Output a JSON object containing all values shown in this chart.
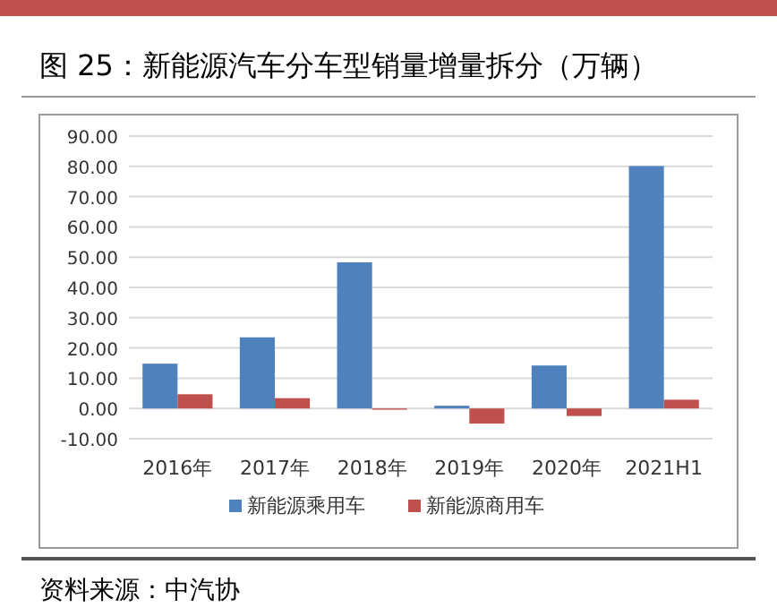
{
  "chart_data": {
    "type": "bar",
    "title": "图 25：新能源汽车分车型销量增量拆分（万辆）",
    "categories": [
      "2016年",
      "2017年",
      "2018年",
      "2019年",
      "2020年",
      "2021H1"
    ],
    "series": [
      {
        "name": "新能源乘用车",
        "color": "#4f81bd",
        "values": [
          14.8,
          23.5,
          48.3,
          0.9,
          14.2,
          80.1
        ]
      },
      {
        "name": "新能源商用车",
        "color": "#c0504d",
        "values": [
          4.7,
          3.4,
          -0.4,
          -5.0,
          -2.5,
          2.9
        ]
      }
    ],
    "ylim": [
      -10,
      90
    ],
    "yticks": [
      {
        "value": -10,
        "label": "-10.00"
      },
      {
        "value": 0,
        "label": "0.00"
      },
      {
        "value": 10,
        "label": "10.00"
      },
      {
        "value": 20,
        "label": "20.00"
      },
      {
        "value": 30,
        "label": "30.00"
      },
      {
        "value": 40,
        "label": "40.00"
      },
      {
        "value": 50,
        "label": "50.00"
      },
      {
        "value": 60,
        "label": "60.00"
      },
      {
        "value": 70,
        "label": "70.00"
      },
      {
        "value": 80,
        "label": "80.00"
      },
      {
        "value": 90,
        "label": "90.00"
      }
    ],
    "grid": "y",
    "legend": "bottom",
    "annotations": [
      "资料来源：中汽协"
    ]
  }
}
